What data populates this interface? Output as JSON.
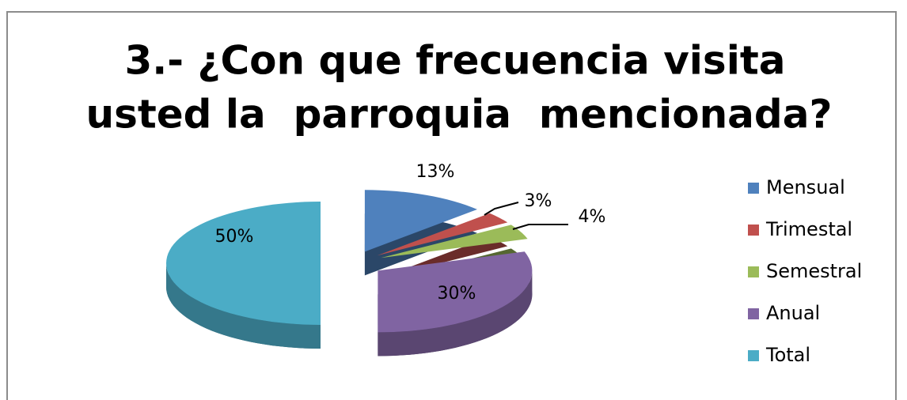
{
  "chart_data": {
    "type": "pie",
    "title": [
      "3.- ¿Con que frecuencia visita",
      "usted la  parroquia  mencionada?"
    ],
    "categories": [
      "Mensual",
      "Trimestal",
      "Semestral",
      "Anual",
      "Total"
    ],
    "values": [
      13,
      3,
      4,
      30,
      50
    ],
    "value_labels": [
      "13%",
      "3%",
      "4%",
      "30%",
      "50%"
    ],
    "colors": [
      "#4f81bd",
      "#c0504d",
      "#9bbb59",
      "#8064a2",
      "#4bacc6"
    ],
    "legend": "right"
  }
}
